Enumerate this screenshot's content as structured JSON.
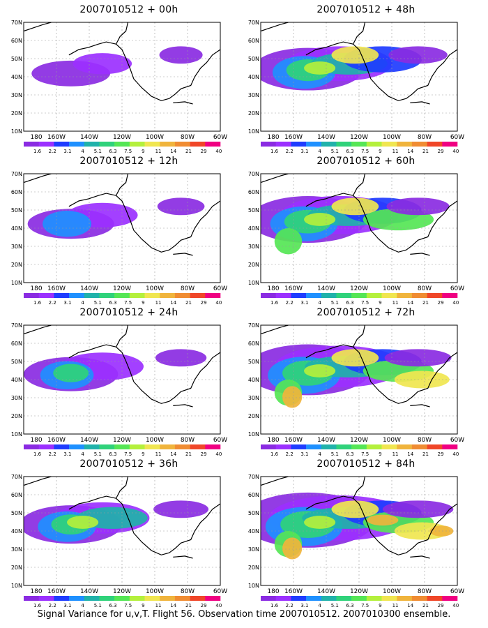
{
  "figure": {
    "caption": "Signal Variance for u,v,T. Flight 56. Observation time 2007010512. 2007010300 ensemble.",
    "colors": {
      "land": "#ffffff",
      "coast": "#000000",
      "grid": "#9a9a9a",
      "scale": [
        "#8a2be2",
        "#9b30ff",
        "#1e3cff",
        "#1e90ff",
        "#20b2aa",
        "#2fd27a",
        "#55e655",
        "#b4f03c",
        "#f0e650",
        "#f0b43c",
        "#f08c32",
        "#f04628",
        "#f00082"
      ]
    },
    "colorbar_labels": [
      "1.6",
      "2.2",
      "3.1",
      "4",
      "5.1",
      "6.3",
      "7.5",
      "9",
      "11",
      "14",
      "21",
      "29",
      "40"
    ],
    "lat_labels": [
      "70N",
      "60N",
      "50N",
      "40N",
      "30N",
      "20N",
      "10N"
    ],
    "lon_labels": [
      "180",
      "160W",
      "140W",
      "120W",
      "100W",
      "80W",
      "60W"
    ],
    "panels": [
      {
        "title": "2007010512 + 00h",
        "intensity": 1
      },
      {
        "title": "2007010512 + 48h",
        "intensity": 5
      },
      {
        "title": "2007010512 + 12h",
        "intensity": 2
      },
      {
        "title": "2007010512 + 60h",
        "intensity": 6
      },
      {
        "title": "2007010512 + 24h",
        "intensity": 3
      },
      {
        "title": "2007010512 + 72h",
        "intensity": 7
      },
      {
        "title": "2007010512 + 36h",
        "intensity": 4
      },
      {
        "title": "2007010512 + 84h",
        "intensity": 8
      }
    ]
  }
}
